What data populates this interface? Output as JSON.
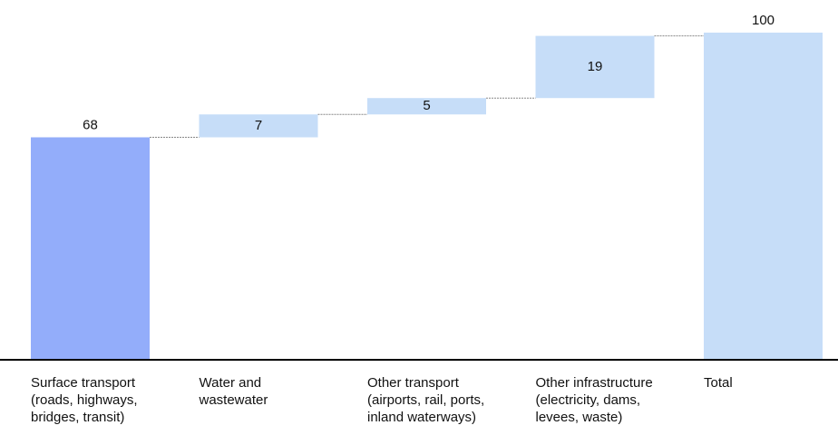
{
  "chart_data": {
    "type": "waterfall",
    "categories": [
      "Surface transport\n(roads, highways,\nbridges, transit)",
      "Water and\nwastewater",
      "Other transport\n(airports, rail, ports,\ninland waterways)",
      "Other infrastructure\n(electricity, dams,\nlevees, waste)",
      "Total"
    ],
    "values": [
      68,
      7,
      5,
      19,
      100
    ],
    "colors": [
      "#93adfa",
      "#c6ddf8",
      "#c6ddf8",
      "#c6ddf8",
      "#c6ddf8"
    ],
    "ylim": [
      0,
      100
    ]
  }
}
